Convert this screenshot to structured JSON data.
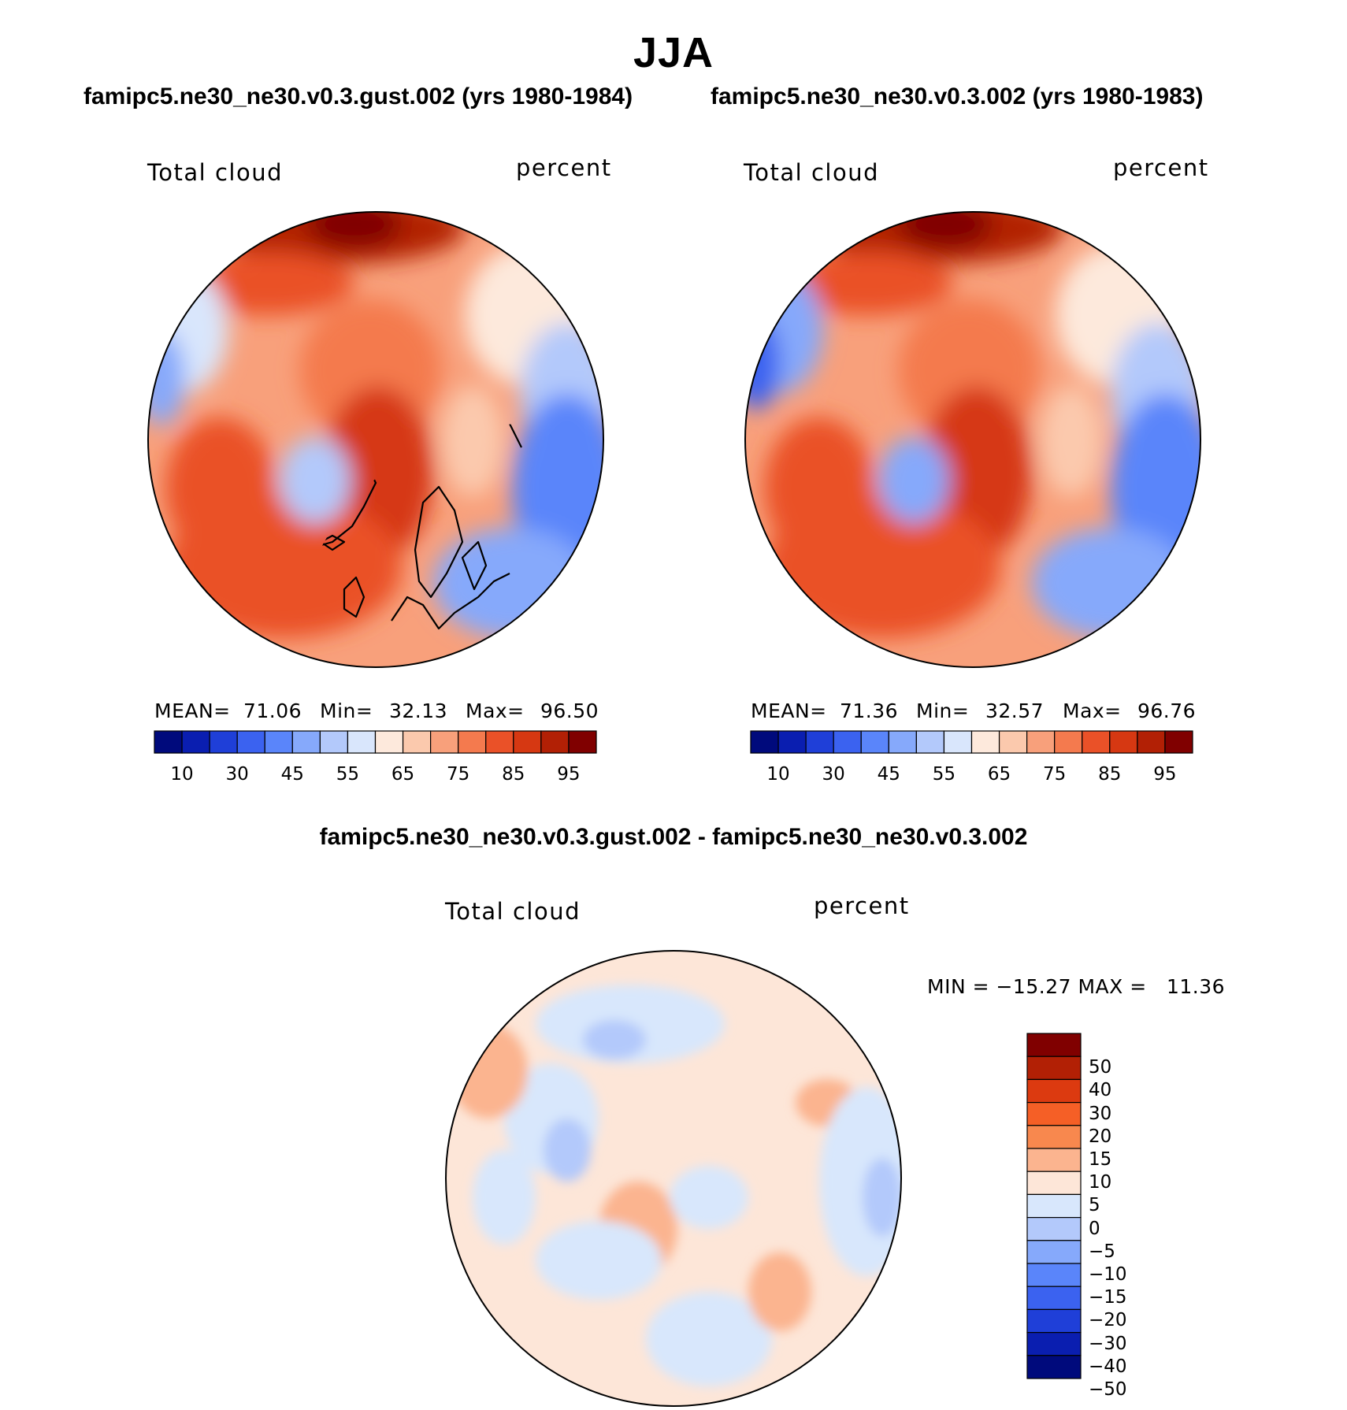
{
  "title": "JJA",
  "panel_left": {
    "case_title": "famipc5.ne30_ne30.v0.3.gust.002 (yrs 1980-1984)",
    "variable": "Total cloud",
    "units": "percent",
    "stats": {
      "mean_label": "MEAN=",
      "mean": "71.06",
      "min_label": "Min=",
      "min": "32.13",
      "max_label": "Max=",
      "max": "96.50"
    }
  },
  "panel_right": {
    "case_title": "famipc5.ne30_ne30.v0.3.002 (yrs 1980-1983)",
    "variable": "Total cloud",
    "units": "percent",
    "stats": {
      "mean_label": "MEAN=",
      "mean": "71.36",
      "min_label": "Min=",
      "min": "32.57",
      "max_label": "Max=",
      "max": "96.76"
    }
  },
  "panel_diff": {
    "case_title": "famipc5.ne30_ne30.v0.3.gust.002 - famipc5.ne30_ne30.v0.3.002",
    "variable": "Total cloud",
    "units": "percent",
    "minmax": "MIN = −15.27 MAX =   11.36"
  },
  "colorbar_abs": {
    "colors": [
      "#000a7c",
      "#0a1eb0",
      "#1f3fd8",
      "#3b62f0",
      "#5a85fa",
      "#86a9fb",
      "#b3c9fb",
      "#d9e6fc",
      "#fde9dc",
      "#fbc9ad",
      "#f8a07b",
      "#f47a4e",
      "#ea5128",
      "#d63812",
      "#b22005",
      "#800000"
    ],
    "tick_labels": [
      "10",
      "30",
      "45",
      "55",
      "65",
      "75",
      "85",
      "95"
    ]
  },
  "colorbar_diff": {
    "colors": [
      "#800000",
      "#b22005",
      "#dc3a10",
      "#f55f26",
      "#f8884e",
      "#fbb48f",
      "#fde6d8",
      "#d8e7fc",
      "#b3c9fb",
      "#86a9fb",
      "#5a85fa",
      "#3b62f0",
      "#1f3fd8",
      "#0a1eb0",
      "#000a7c"
    ],
    "tick_labels": [
      "50",
      "40",
      "30",
      "20",
      "15",
      "10",
      "5",
      "0",
      "−5",
      "−10",
      "−15",
      "−20",
      "−30",
      "−40",
      "−50"
    ]
  },
  "chart_data": [
    {
      "type": "heatmap",
      "title": "famipc5.ne30_ne30.v0.3.gust.002 (yrs 1980-1984)",
      "variable": "Total cloud",
      "units": "percent",
      "season": "JJA",
      "projection": "north polar stereographic",
      "levels": [
        10,
        20,
        30,
        40,
        45,
        50,
        55,
        60,
        65,
        70,
        75,
        80,
        85,
        90,
        95
      ],
      "mean": 71.06,
      "min": 32.13,
      "max": 96.5
    },
    {
      "type": "heatmap",
      "title": "famipc5.ne30_ne30.v0.3.002 (yrs 1980-1983)",
      "variable": "Total cloud",
      "units": "percent",
      "season": "JJA",
      "projection": "north polar stereographic",
      "levels": [
        10,
        20,
        30,
        40,
        45,
        50,
        55,
        60,
        65,
        70,
        75,
        80,
        85,
        90,
        95
      ],
      "mean": 71.36,
      "min": 32.57,
      "max": 96.76
    },
    {
      "type": "heatmap",
      "title": "famipc5.ne30_ne30.v0.3.gust.002 - famipc5.ne30_ne30.v0.3.002",
      "variable": "Total cloud",
      "units": "percent",
      "season": "JJA",
      "projection": "north polar stereographic",
      "levels": [
        -50,
        -40,
        -30,
        -20,
        -15,
        -10,
        -5,
        0,
        5,
        10,
        15,
        20,
        30,
        40,
        50
      ],
      "min": -15.27,
      "max": 11.36
    }
  ]
}
